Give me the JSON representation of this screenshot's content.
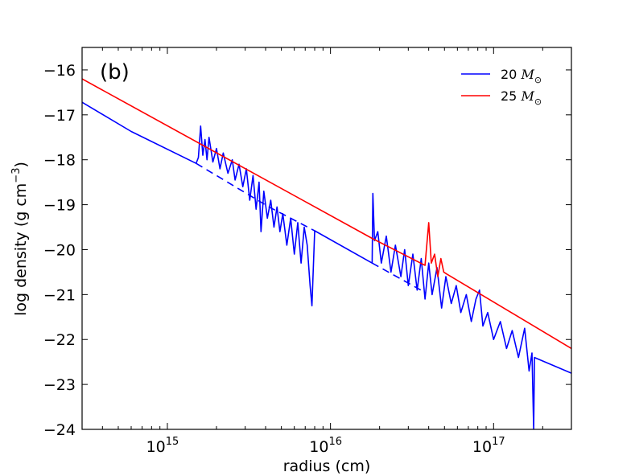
{
  "chart_data": {
    "type": "line",
    "panel_label": "(b)",
    "xlabel": "radius (cm)",
    "ylabel": "log density (g cm",
    "ylabel_sup": "−3",
    "ylabel_close": ")",
    "xscale": "log",
    "xlim": [
      300000000000000.0,
      3e+17
    ],
    "ylim": [
      -24,
      -15.5
    ],
    "x_major_ticks": [
      {
        "value": 1000000000000000.0,
        "base": "10",
        "exp": "15"
      },
      {
        "value": 1e+16,
        "base": "10",
        "exp": "16"
      },
      {
        "value": 1e+17,
        "base": "10",
        "exp": "17"
      }
    ],
    "y_ticks": [
      -16,
      -17,
      -18,
      -19,
      -20,
      -21,
      -22,
      -23,
      -24
    ],
    "y_tick_labels": [
      "−16",
      "−17",
      "−18",
      "−19",
      "−20",
      "−21",
      "−22",
      "−23",
      "−24"
    ],
    "grid": false,
    "legend_position": "top-right",
    "series": [
      {
        "name": "20 M☉",
        "label_num": "20",
        "label_sym": "M",
        "label_sub": "⊙",
        "color": "#0000ff",
        "style": "solid",
        "points": [
          [
            300000000000000.0,
            -16.72
          ],
          [
            600000000000000.0,
            -17.37
          ],
          [
            1500000000000000.0,
            -18.08
          ],
          [
            1550000000000000.0,
            -17.95
          ],
          [
            1600000000000000.0,
            -17.25
          ],
          [
            1650000000000000.0,
            -17.9
          ],
          [
            1700000000000000.0,
            -17.55
          ],
          [
            1750000000000000.0,
            -18.0
          ],
          [
            1800000000000000.0,
            -17.5
          ],
          [
            1900000000000000.0,
            -18.05
          ],
          [
            2000000000000000.0,
            -17.75
          ],
          [
            2100000000000000.0,
            -18.2
          ],
          [
            2200000000000000.0,
            -17.85
          ],
          [
            2350000000000000.0,
            -18.3
          ],
          [
            2500000000000000.0,
            -18.0
          ],
          [
            2600000000000000.0,
            -18.45
          ],
          [
            2750000000000000.0,
            -18.1
          ],
          [
            2900000000000000.0,
            -18.6
          ],
          [
            3050000000000000.0,
            -18.2
          ],
          [
            3200000000000000.0,
            -18.9
          ],
          [
            3350000000000000.0,
            -18.35
          ],
          [
            3500000000000000.0,
            -19.1
          ],
          [
            3650000000000000.0,
            -18.5
          ],
          [
            3750000000000000.0,
            -19.6
          ],
          [
            3900000000000000.0,
            -18.7
          ],
          [
            4100000000000000.0,
            -19.3
          ],
          [
            4300000000000000.0,
            -18.9
          ],
          [
            4500000000000000.0,
            -19.5
          ],
          [
            4700000000000000.0,
            -19.05
          ],
          [
            4900000000000000.0,
            -19.6
          ],
          [
            5100000000000000.0,
            -19.2
          ],
          [
            5400000000000000.0,
            -19.9
          ],
          [
            5700000000000000.0,
            -19.3
          ],
          [
            6000000000000000.0,
            -20.1
          ],
          [
            6300000000000000.0,
            -19.4
          ],
          [
            6600000000000000.0,
            -20.3
          ],
          [
            6900000000000000.0,
            -19.5
          ],
          [
            7200000000000000.0,
            -19.9
          ],
          [
            7500000000000000.0,
            -20.8
          ],
          [
            7700000000000000.0,
            -21.25
          ],
          [
            8000000000000000.0,
            -19.58
          ],
          [
            1.8e+16,
            -20.3
          ],
          [
            1.82e+16,
            -18.75
          ],
          [
            1.86e+16,
            -19.8
          ],
          [
            1.95e+16,
            -19.6
          ],
          [
            2.05e+16,
            -20.3
          ],
          [
            2.2e+16,
            -19.7
          ],
          [
            2.35e+16,
            -20.5
          ],
          [
            2.5e+16,
            -19.9
          ],
          [
            2.7e+16,
            -20.6
          ],
          [
            2.85e+16,
            -20.0
          ],
          [
            3e+16,
            -20.8
          ],
          [
            3.2e+16,
            -20.1
          ],
          [
            3.4e+16,
            -20.9
          ],
          [
            3.6e+16,
            -20.2
          ],
          [
            3.8e+16,
            -21.1
          ],
          [
            4e+16,
            -20.3
          ],
          [
            4.2e+16,
            -21.0
          ],
          [
            4.5e+16,
            -20.4
          ],
          [
            4.8e+16,
            -21.3
          ],
          [
            5.1e+16,
            -20.6
          ],
          [
            5.5e+16,
            -21.2
          ],
          [
            5.9e+16,
            -20.8
          ],
          [
            6.3e+16,
            -21.4
          ],
          [
            6.8e+16,
            -21.0
          ],
          [
            7.3e+16,
            -21.6
          ],
          [
            7.8e+16,
            -21.1
          ],
          [
            8.2e+16,
            -20.9
          ],
          [
            8.6e+16,
            -21.7
          ],
          [
            9.2e+16,
            -21.4
          ],
          [
            1e+17,
            -22.0
          ],
          [
            1.1e+17,
            -21.6
          ],
          [
            1.2e+17,
            -22.2
          ],
          [
            1.3e+17,
            -21.8
          ],
          [
            1.42e+17,
            -22.4
          ],
          [
            1.55e+17,
            -21.75
          ],
          [
            1.65e+17,
            -22.7
          ],
          [
            1.72e+17,
            -22.3
          ],
          [
            1.76e+17,
            -24.0
          ],
          [
            1.78e+17,
            -22.4
          ],
          [
            3e+17,
            -22.75
          ]
        ]
      },
      {
        "name": "20 M☉ (dashed)",
        "color": "#0000ff",
        "style": "dashed",
        "points": [
          [
            1500000000000000.0,
            -18.08
          ],
          [
            4200000000000000.0,
            -19.05
          ],
          [
            8000000000000000.0,
            -19.58
          ]
        ]
      },
      {
        "name": "20 M☉ (dashed, outer)",
        "color": "#0000ff",
        "style": "dashed",
        "points": [
          [
            1.8e+16,
            -20.3
          ],
          [
            3.8e+16,
            -20.95
          ]
        ]
      },
      {
        "name": "25 M☉",
        "label_num": "25",
        "label_sym": "M",
        "label_sub": "⊙",
        "color": "#ff0000",
        "style": "solid",
        "points": [
          [
            300000000000000.0,
            -16.2
          ],
          [
            1.8e+16,
            -19.75
          ],
          [
            3.8e+16,
            -20.35
          ],
          [
            4e+16,
            -19.4
          ],
          [
            4.15e+16,
            -20.3
          ],
          [
            4.35e+16,
            -20.1
          ],
          [
            4.55e+16,
            -20.6
          ],
          [
            4.75e+16,
            -20.2
          ],
          [
            4.95e+16,
            -20.5
          ],
          [
            5.2e+16,
            -20.55
          ],
          [
            3e+17,
            -22.2
          ]
        ]
      }
    ]
  }
}
